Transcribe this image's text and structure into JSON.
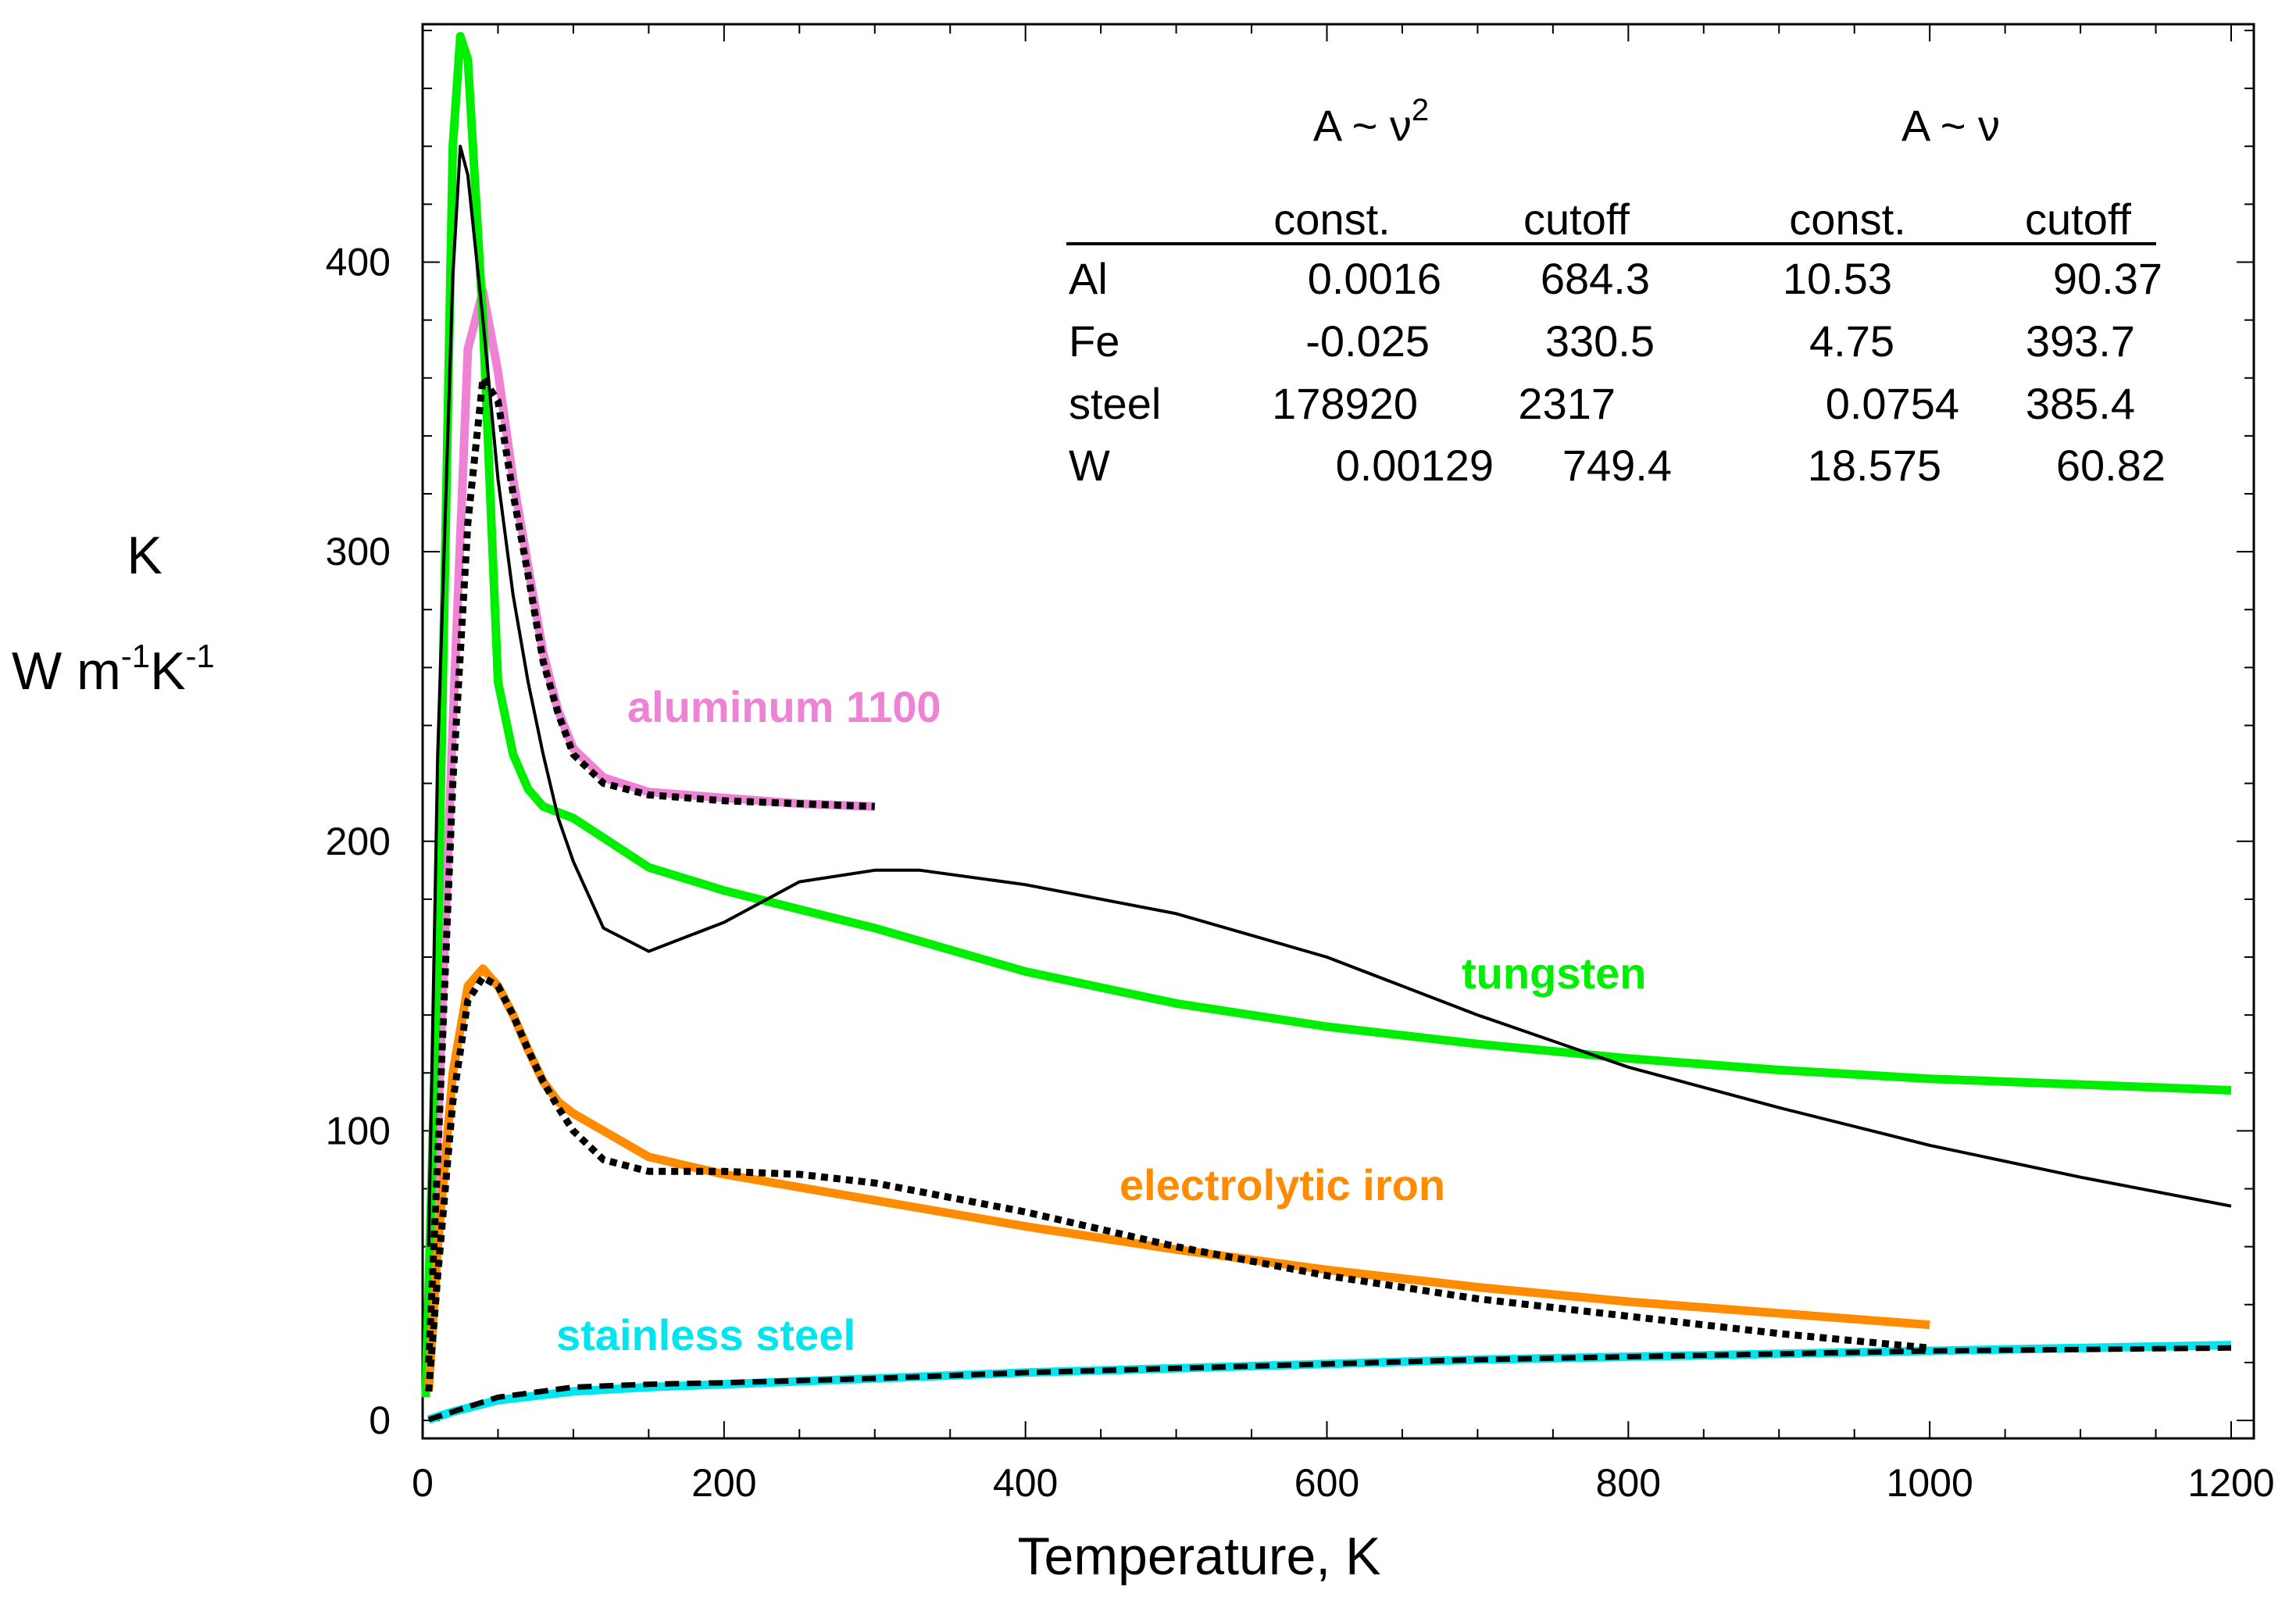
{
  "chart_data": {
    "type": "line",
    "title": "",
    "xlabel": "Temperature, K",
    "ylabel": {
      "symbol": "K",
      "units_base": "W m",
      "units_exp1": "-1",
      "units_mid": "K",
      "units_exp2": "-1"
    },
    "xlim": [
      0,
      1200
    ],
    "ylim": [
      0,
      480
    ],
    "x_ticks": [
      0,
      200,
      400,
      600,
      800,
      1000,
      1200
    ],
    "y_ticks": [
      0,
      100,
      200,
      300,
      400
    ],
    "grid": false,
    "series": [
      {
        "name": "aluminum 1100",
        "label": "aluminum 1100",
        "color": "#ee82d5",
        "style": "solid",
        "x": [
          4,
          10,
          20,
          30,
          40,
          50,
          60,
          70,
          80,
          90,
          100,
          120,
          150,
          200,
          250,
          300
        ],
        "y": [
          20,
          100,
          240,
          370,
          390,
          362,
          325,
          295,
          265,
          245,
          232,
          222,
          217,
          215,
          213,
          212
        ]
      },
      {
        "name": "aluminum 1100 fit",
        "color": "#000000",
        "style": "dotted",
        "x": [
          4,
          10,
          20,
          30,
          40,
          50,
          60,
          70,
          80,
          90,
          100,
          120,
          150,
          200,
          250,
          300
        ],
        "y": [
          20,
          90,
          220,
          310,
          360,
          352,
          320,
          292,
          262,
          244,
          230,
          220,
          216,
          214,
          213,
          212
        ]
      },
      {
        "name": "tungsten",
        "label": "tungsten",
        "color": "#00ee00",
        "style": "solid",
        "x": [
          2,
          10,
          20,
          25,
          30,
          40,
          50,
          60,
          70,
          80,
          100,
          150,
          200,
          300,
          400,
          500,
          600,
          700,
          800,
          900,
          1000,
          1100,
          1200
        ],
        "y": [
          8,
          160,
          440,
          478,
          470,
          380,
          255,
          230,
          218,
          212,
          208,
          191,
          183,
          170,
          155,
          144,
          136,
          130,
          125,
          121,
          118,
          116,
          114
        ]
      },
      {
        "name": "tungsten fit",
        "color": "#000000",
        "style": "solid-thin",
        "x": [
          4,
          10,
          20,
          25,
          30,
          40,
          50,
          60,
          70,
          80,
          90,
          100,
          120,
          150,
          200,
          250,
          300,
          330,
          400,
          500,
          600,
          700,
          800,
          900,
          1000,
          1100,
          1200
        ],
        "y": [
          60,
          230,
          395,
          440,
          430,
          380,
          325,
          285,
          255,
          230,
          208,
          193,
          170,
          162,
          172,
          186,
          190,
          190,
          185,
          175,
          160,
          140,
          122,
          108,
          95,
          84,
          74
        ]
      },
      {
        "name": "electrolytic iron",
        "label": "electrolytic iron",
        "color": "#ff8c00",
        "style": "solid",
        "x": [
          4,
          10,
          20,
          30,
          40,
          50,
          60,
          70,
          80,
          90,
          100,
          150,
          200,
          300,
          400,
          500,
          600,
          700,
          800,
          900,
          1000
        ],
        "y": [
          10,
          60,
          120,
          150,
          156,
          150,
          140,
          128,
          117,
          110,
          106,
          91,
          85,
          76,
          67,
          59,
          52,
          46,
          41,
          37,
          33
        ]
      },
      {
        "name": "electrolytic iron fit",
        "color": "#000000",
        "style": "dotted",
        "x": [
          4,
          10,
          20,
          30,
          40,
          50,
          60,
          70,
          80,
          90,
          100,
          120,
          150,
          200,
          250,
          300,
          400,
          500,
          600,
          700,
          800,
          900,
          1000
        ],
        "y": [
          10,
          50,
          110,
          145,
          153,
          150,
          140,
          128,
          117,
          108,
          100,
          90,
          86,
          86,
          85,
          82,
          72,
          60,
          50,
          42,
          36,
          30,
          25
        ]
      },
      {
        "name": "stainless steel",
        "label": "stainless steel",
        "color": "#00e5ee",
        "style": "solid",
        "x": [
          4,
          20,
          50,
          100,
          150,
          200,
          300,
          400,
          500,
          600,
          700,
          800,
          900,
          1000,
          1100,
          1200
        ],
        "y": [
          0.3,
          3,
          7,
          10,
          11.5,
          12.5,
          14.5,
          16.5,
          18,
          19.5,
          21,
          22,
          23,
          24,
          25,
          26
        ]
      },
      {
        "name": "stainless steel fit",
        "color": "#000000",
        "style": "dashed",
        "x": [
          4,
          20,
          50,
          100,
          150,
          200,
          300,
          400,
          500,
          600,
          700,
          800,
          900,
          1000,
          1100,
          1200
        ],
        "y": [
          0.3,
          3,
          8,
          11.5,
          12.5,
          13,
          14.5,
          16.5,
          18,
          19.5,
          21,
          22,
          23,
          24,
          24.5,
          25
        ]
      }
    ],
    "annotations": {
      "table": {
        "header_v2": {
          "base": "A ~ ν",
          "sup": "2"
        },
        "header_v1": "A ~ ν",
        "columns": [
          "const.",
          "cutoff",
          "const.",
          "cutoff"
        ],
        "rows": [
          {
            "label": "Al",
            "values": [
              "0.0016",
              "684.3",
              "10.53",
              "90.37"
            ]
          },
          {
            "label": "Fe",
            "values": [
              "-0.025",
              "330.5",
              "4.75",
              "393.7"
            ]
          },
          {
            "label": "steel",
            "values": [
              "178920",
              "2317",
              "0.0754",
              "385.4"
            ]
          },
          {
            "label": "W",
            "values": [
              "0.00129",
              "749.4",
              "18.575",
              "60.82"
            ]
          }
        ]
      }
    }
  }
}
